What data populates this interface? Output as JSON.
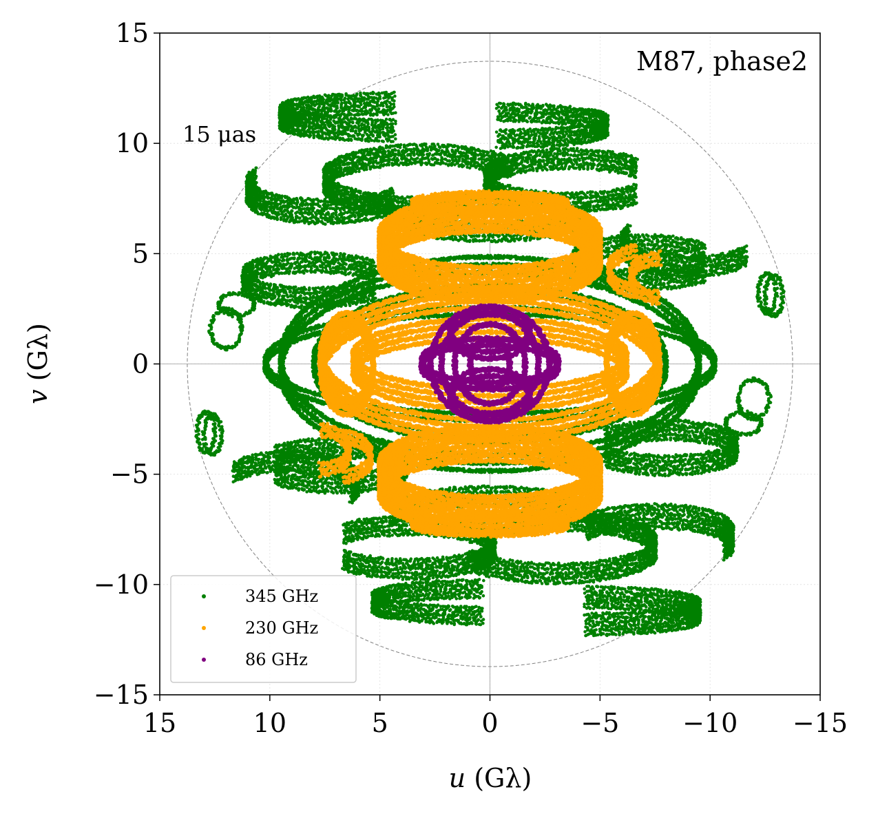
{
  "colors": {
    "band_345": "#008000",
    "band_230": "#FFA500",
    "band_86": "#800080",
    "ring": "#808080",
    "axis": "#000000"
  },
  "chart_data": {
    "type": "scatter",
    "title": "M87, phase2",
    "annotation": "15 μas",
    "xlabel_var": "u",
    "xlabel_unit": " (Gλ)",
    "ylabel_var": "v",
    "ylabel_unit": " (Gλ)",
    "xlim": [
      15,
      -15
    ],
    "ylim": [
      -15,
      15
    ],
    "xticks": [
      15,
      10,
      5,
      0,
      -5,
      -10,
      -15
    ],
    "yticks": [
      -15,
      -10,
      -5,
      0,
      5,
      10,
      15
    ],
    "xtick_labels": [
      "15",
      "10",
      "5",
      "0",
      "−5",
      "−10",
      "−15"
    ],
    "ytick_labels": [
      "−15",
      "−10",
      "−5",
      "0",
      "5",
      "10",
      "15"
    ],
    "grid": true,
    "reference_circle_radius": 13.75,
    "legend_position": "lower-left",
    "legend": [
      {
        "label": "345 GHz",
        "color": "#008000"
      },
      {
        "label": "230 GHz",
        "color": "#FFA500"
      },
      {
        "label": "86 GHz",
        "color": "#800080"
      }
    ],
    "series": [
      {
        "name": "345 GHz",
        "color": "#008000",
        "tracks": [
          {
            "cu": 4.5,
            "cv": 11.2,
            "a": 5.0,
            "b": 0.6,
            "t0": -1.6,
            "t1": 1.6,
            "lanes": 6,
            "dv": 0.18
          },
          {
            "cu": 3.0,
            "cv": 8.3,
            "a": 4.5,
            "b": 1.2,
            "t0": -2.5,
            "t1": 2.6,
            "lanes": 5,
            "dv": 0.2
          },
          {
            "cu": -3.6,
            "cv": 8.3,
            "a": 3.8,
            "b": 1.0,
            "t0": -2.5,
            "t1": 2.5,
            "lanes": 5,
            "dv": 0.2
          },
          {
            "cu": 8.0,
            "cv": 3.8,
            "a": 3.2,
            "b": 0.8,
            "t0": -2.6,
            "t1": 2.6,
            "lanes": 5,
            "dv": 0.2
          },
          {
            "cu": -7.0,
            "cv": 4.6,
            "a": 3.2,
            "b": 0.8,
            "t0": -2.6,
            "t1": 2.6,
            "lanes": 5,
            "dv": 0.2
          },
          {
            "cu": 9.0,
            "cv": -5.4,
            "a": 3.0,
            "b": 1.0,
            "t0": 0.5,
            "t1": 3.6,
            "lanes": 5,
            "dv": 0.2
          },
          {
            "cu": -7.5,
            "cv": -7.9,
            "a": 3.5,
            "b": 1.0,
            "t0": 0.5,
            "t1": 3.6,
            "lanes": 6,
            "dv": 0.2
          },
          {
            "cu": 0.5,
            "cv": -10.8,
            "a": 4.8,
            "b": 0.6,
            "t0": -1.6,
            "t1": 1.6,
            "lanes": 5,
            "dv": 0.18
          },
          {
            "cu": 0.0,
            "cv": -7.0,
            "a": 4.5,
            "b": 1.0,
            "t0": 0.2,
            "t1": 3.0,
            "lanes": 5,
            "dv": 0.2
          },
          {
            "cu": 0.0,
            "cv": 0.0,
            "a": 9.5,
            "b": 4.5,
            "t0": 0.0,
            "t1": 6.283,
            "lanes": 3,
            "dv": 0.35
          },
          {
            "cu": 0.0,
            "cv": 0.0,
            "a": 8.0,
            "b": 3.4,
            "t0": 0.0,
            "t1": 6.283,
            "lanes": 2,
            "dv": 0.35
          },
          {
            "cu": 0.0,
            "cv": 0.0,
            "a": 10.2,
            "b": 2.4,
            "t0": 0.0,
            "t1": 6.283,
            "lanes": 2,
            "dv": 0.3
          },
          {
            "cu": 12.6,
            "cv": -3.2,
            "a": 0.4,
            "b": 0.9,
            "t0": 0.0,
            "t1": 6.283,
            "lanes": 1,
            "dv": 0.0
          },
          {
            "cu": -12.9,
            "cv": 3.1,
            "a": 0.4,
            "b": 0.9,
            "t0": 0.0,
            "t1": 6.283,
            "lanes": 1,
            "dv": 0.0
          },
          {
            "cu": 11.5,
            "cv": 2.7,
            "a": 0.8,
            "b": 0.5,
            "t0": 0.0,
            "t1": 6.283,
            "lanes": 1,
            "dv": 0.0
          },
          {
            "cu": -12.0,
            "cv": -1.6,
            "a": 0.7,
            "b": 0.9,
            "t0": 0.0,
            "t1": 6.283,
            "lanes": 1,
            "dv": 0.0
          }
        ]
      },
      {
        "name": "230 GHz",
        "color": "#FFA500",
        "tracks": [
          {
            "cu": 0.0,
            "cv": 5.2,
            "a": 5.0,
            "b": 1.6,
            "t0": 0.0,
            "t1": 6.283,
            "lanes": 8,
            "dv": 0.22
          },
          {
            "cu": 0.0,
            "cv": -5.2,
            "a": 5.0,
            "b": 1.6,
            "t0": 0.0,
            "t1": 6.283,
            "lanes": 8,
            "dv": 0.22
          },
          {
            "cu": 0.0,
            "cv": 0.0,
            "a": 7.6,
            "b": 3.0,
            "t0": 0.0,
            "t1": 6.283,
            "lanes": 4,
            "dv": 0.3
          },
          {
            "cu": 0.0,
            "cv": 0.0,
            "a": 6.2,
            "b": 1.6,
            "t0": 0.0,
            "t1": 6.283,
            "lanes": 4,
            "dv": 0.3
          },
          {
            "cu": 6.5,
            "cv": 0.0,
            "a": 1.2,
            "b": 2.0,
            "t0": 0.0,
            "t1": 6.283,
            "lanes": 3,
            "dv": 0.3
          },
          {
            "cu": -6.5,
            "cv": 0.0,
            "a": 1.2,
            "b": 2.0,
            "t0": 0.0,
            "t1": 6.283,
            "lanes": 3,
            "dv": 0.3
          },
          {
            "cu": 0.0,
            "cv": 7.3,
            "a": 3.0,
            "b": 0.4,
            "t0": 0.0,
            "t1": 6.283,
            "lanes": 2,
            "dv": 0.15
          },
          {
            "cu": 0.0,
            "cv": -7.3,
            "a": 3.5,
            "b": 0.4,
            "t0": 0.0,
            "t1": 6.283,
            "lanes": 2,
            "dv": 0.15
          },
          {
            "cu": -7.8,
            "cv": 3.9,
            "a": 1.4,
            "b": 0.9,
            "t0": -1.5,
            "t1": 1.5,
            "lanes": 3,
            "dv": 0.25
          },
          {
            "cu": 6.8,
            "cv": -4.2,
            "a": 1.4,
            "b": 0.9,
            "t0": 1.6,
            "t1": 4.6,
            "lanes": 3,
            "dv": 0.25
          }
        ]
      },
      {
        "name": "86 GHz",
        "color": "#800080",
        "tracks": [
          {
            "cu": 0.0,
            "cv": 0.0,
            "a": 2.7,
            "b": 2.6,
            "t0": 0.0,
            "t1": 6.283,
            "lanes": 1,
            "dv": 0.0
          },
          {
            "cu": 0.0,
            "cv": 0.0,
            "a": 2.2,
            "b": 2.3,
            "t0": 0.0,
            "t1": 6.283,
            "lanes": 1,
            "dv": 0.0
          },
          {
            "cu": 0.0,
            "cv": 0.0,
            "a": 1.6,
            "b": 1.8,
            "t0": 0.0,
            "t1": 6.283,
            "lanes": 1,
            "dv": 0.0
          },
          {
            "cu": 0.0,
            "cv": 0.0,
            "a": 0.9,
            "b": 1.1,
            "t0": 0.0,
            "t1": 6.283,
            "lanes": 1,
            "dv": 0.0
          },
          {
            "cu": 0.0,
            "cv": 0.0,
            "a": 3.1,
            "b": 1.0,
            "t0": 0.0,
            "t1": 6.283,
            "lanes": 2,
            "dv": 0.3
          },
          {
            "cu": 0.0,
            "cv": 1.4,
            "a": 1.8,
            "b": 1.0,
            "t0": 0.0,
            "t1": 6.283,
            "lanes": 2,
            "dv": 0.3
          },
          {
            "cu": 0.0,
            "cv": -1.4,
            "a": 1.8,
            "b": 1.0,
            "t0": 0.0,
            "t1": 6.283,
            "lanes": 2,
            "dv": 0.3
          }
        ]
      }
    ]
  }
}
